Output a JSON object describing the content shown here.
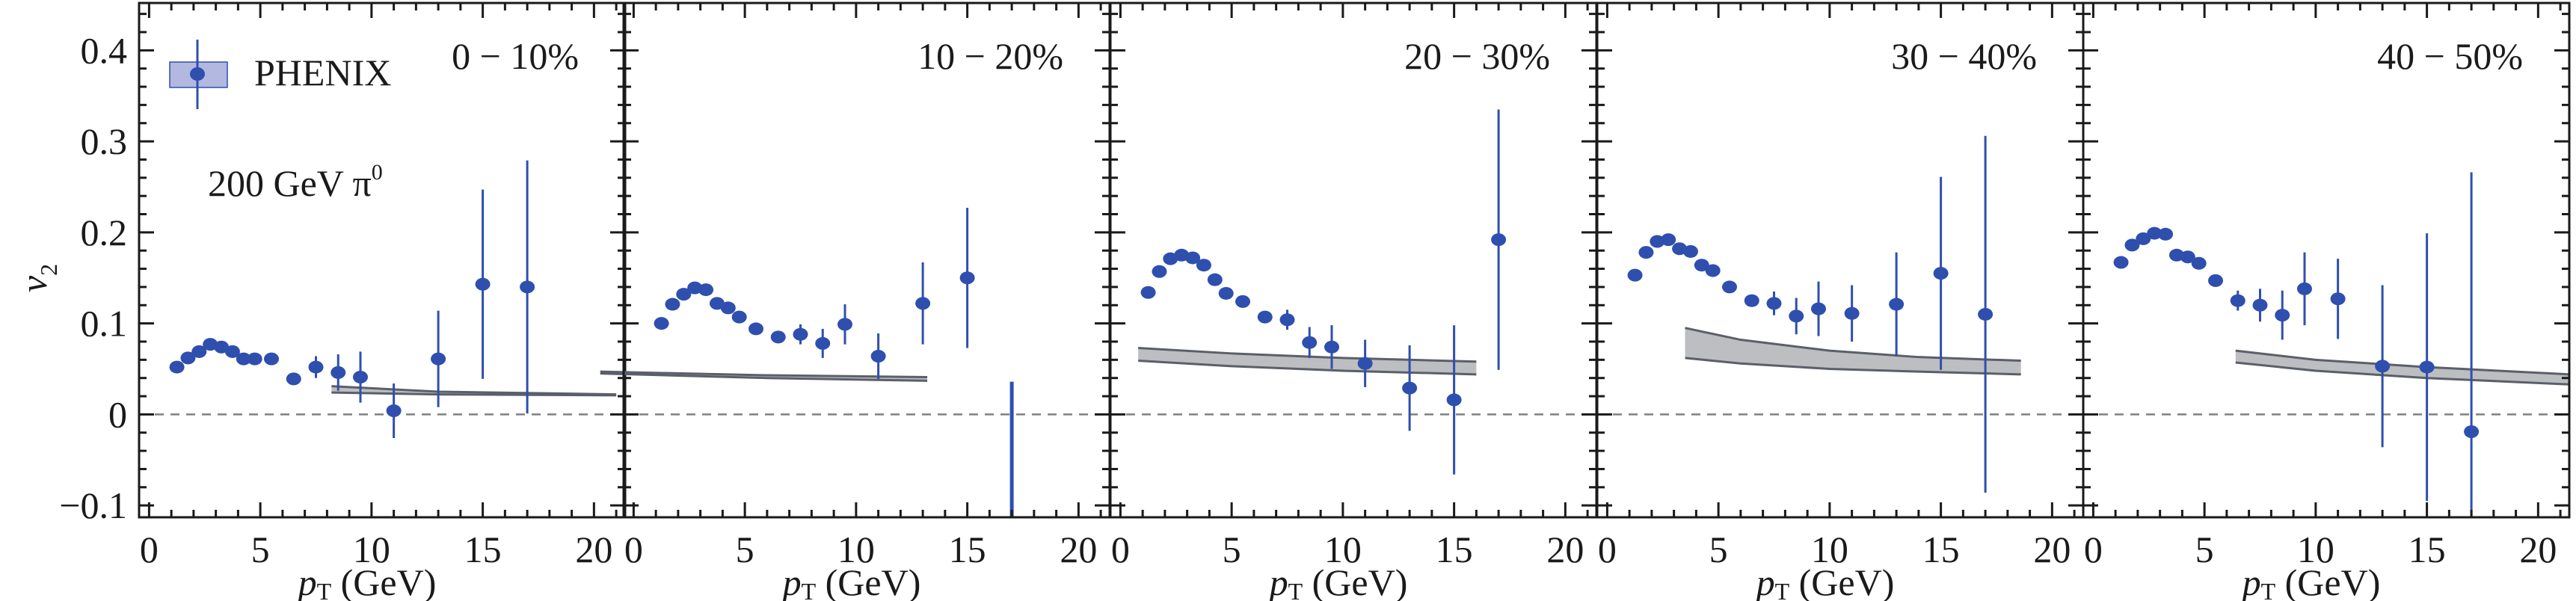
{
  "colors": {
    "data": "#2f4fae",
    "legend_fill": "#b3b8e0",
    "band_fill": "#bdbec1",
    "band_line": "#5a5f69",
    "zero_line": "#808080",
    "axis": "#1a1a1a"
  },
  "chart_data": {
    "type": "scatter",
    "ylabel": "v",
    "ylabel_sub": "2",
    "xlabel": "p",
    "xlabel_sub": "T",
    "xlabel_unit": " (GeV)",
    "xlim": [
      -0.45,
      21.4
    ],
    "ylim": [
      -0.113,
      0.452
    ],
    "yticks": [
      -0.1,
      0,
      0.1,
      0.2,
      0.3,
      0.4
    ],
    "ytick_labels": [
      "−0.1",
      "0",
      "0.1",
      "0.2",
      "0.3",
      "0.4"
    ],
    "xticks": [
      0,
      5,
      10,
      15,
      20
    ],
    "xtick_labels": [
      "0",
      "5",
      "10",
      "15",
      "20"
    ],
    "legend": {
      "label": "PHENIX",
      "placement": "top-left"
    },
    "annotation": {
      "text": "200 GeV π",
      "sup": "0"
    },
    "grid": false,
    "panels": [
      {
        "centrality": "0 − 10%",
        "x": [
          1.25,
          1.75,
          2.25,
          2.75,
          3.25,
          3.75,
          4.25,
          4.75,
          5.5,
          6.5,
          7.5,
          8.5,
          9.5,
          11,
          13,
          15,
          17
        ],
        "y": [
          0.052,
          0.062,
          0.069,
          0.077,
          0.074,
          0.069,
          0.061,
          0.061,
          0.061,
          0.039,
          0.052,
          0.046,
          0.041,
          0.004,
          0.061,
          0.143,
          0.14
        ],
        "err": [
          0,
          0,
          0,
          0,
          0,
          0,
          0,
          0,
          0,
          0.006,
          0.012,
          0.02,
          0.028,
          0.03,
          0.053,
          0.104,
          0.139
        ],
        "band": [
          {
            "x": 8.2,
            "lo": 0.024,
            "hi": 0.031
          },
          {
            "x": 13,
            "lo": 0.022,
            "hi": 0.025
          },
          {
            "x": 21,
            "lo": 0.021,
            "hi": 0.022
          }
        ]
      },
      {
        "centrality": "10 − 20%",
        "x": [
          1.25,
          1.75,
          2.25,
          2.75,
          3.25,
          3.75,
          4.25,
          4.75,
          5.5,
          6.5,
          7.5,
          8.5,
          9.5,
          11,
          13,
          15,
          17
        ],
        "y": [
          0.1,
          0.121,
          0.132,
          0.139,
          0.137,
          0.122,
          0.117,
          0.107,
          0.094,
          0.085,
          0.088,
          0.078,
          0.099,
          0.064,
          0.122,
          0.15,
          -0.12
        ],
        "err": [
          0,
          0,
          0,
          0,
          0,
          0,
          0,
          0,
          0,
          0,
          0.011,
          0.016,
          0.022,
          0.025,
          0.045,
          0.077,
          0.156
        ],
        "band": [
          {
            "x": -1.5,
            "lo": 0.045,
            "hi": 0.047
          },
          {
            "x": 6,
            "lo": 0.04,
            "hi": 0.043
          },
          {
            "x": 13.2,
            "lo": 0.037,
            "hi": 0.041
          }
        ]
      },
      {
        "centrality": "20 − 30%",
        "x": [
          1.25,
          1.75,
          2.25,
          2.75,
          3.25,
          3.75,
          4.25,
          4.75,
          5.5,
          6.5,
          7.5,
          8.5,
          9.5,
          11,
          13,
          15,
          17
        ],
        "y": [
          0.134,
          0.157,
          0.171,
          0.175,
          0.172,
          0.164,
          0.148,
          0.133,
          0.124,
          0.107,
          0.104,
          0.079,
          0.074,
          0.056,
          0.029,
          0.016,
          0.192
        ],
        "err": [
          0,
          0,
          0,
          0,
          0,
          0,
          0,
          0,
          0,
          0,
          0.011,
          0.017,
          0.024,
          0.026,
          0.047,
          0.082,
          0.143
        ],
        "band": [
          {
            "x": 0.8,
            "lo": 0.059,
            "hi": 0.073
          },
          {
            "x": 5,
            "lo": 0.053,
            "hi": 0.067
          },
          {
            "x": 10,
            "lo": 0.048,
            "hi": 0.062
          },
          {
            "x": 16,
            "lo": 0.044,
            "hi": 0.058
          }
        ]
      },
      {
        "centrality": "30 − 40%",
        "x": [
          1.25,
          1.75,
          2.25,
          2.75,
          3.25,
          3.75,
          4.25,
          4.75,
          5.5,
          6.5,
          7.5,
          8.5,
          9.5,
          11,
          13,
          15,
          17
        ],
        "y": [
          0.153,
          0.178,
          0.19,
          0.192,
          0.182,
          0.179,
          0.164,
          0.158,
          0.14,
          0.125,
          0.122,
          0.108,
          0.116,
          0.111,
          0.121,
          0.155,
          0.11
        ],
        "err": [
          0,
          0,
          0,
          0,
          0,
          0,
          0,
          0,
          0,
          0,
          0.013,
          0.02,
          0.03,
          0.031,
          0.057,
          0.106,
          0.196
        ],
        "band": [
          {
            "x": 3.5,
            "lo": 0.062,
            "hi": 0.095
          },
          {
            "x": 6,
            "lo": 0.056,
            "hi": 0.082
          },
          {
            "x": 10,
            "lo": 0.05,
            "hi": 0.07
          },
          {
            "x": 14,
            "lo": 0.047,
            "hi": 0.063
          },
          {
            "x": 18.6,
            "lo": 0.044,
            "hi": 0.059
          }
        ]
      },
      {
        "centrality": "40 − 50%",
        "x": [
          1.25,
          1.75,
          2.25,
          2.75,
          3.25,
          3.75,
          4.25,
          4.75,
          5.5,
          6.5,
          7.5,
          8.5,
          9.5,
          11,
          13,
          15,
          17
        ],
        "y": [
          0.167,
          0.186,
          0.193,
          0.199,
          0.198,
          0.175,
          0.173,
          0.166,
          0.147,
          0.125,
          0.12,
          0.109,
          0.138,
          0.127,
          0.053,
          0.052,
          -0.019
        ],
        "err": [
          0,
          0,
          0,
          0,
          0,
          0,
          0,
          0,
          0,
          0.011,
          0.018,
          0.027,
          0.04,
          0.044,
          0.089,
          0.147,
          0.285
        ],
        "band": [
          {
            "x": 6.4,
            "lo": 0.057,
            "hi": 0.07
          },
          {
            "x": 10,
            "lo": 0.048,
            "hi": 0.06
          },
          {
            "x": 15,
            "lo": 0.04,
            "hi": 0.052
          },
          {
            "x": 21.4,
            "lo": 0.033,
            "hi": 0.044
          }
        ]
      }
    ]
  }
}
